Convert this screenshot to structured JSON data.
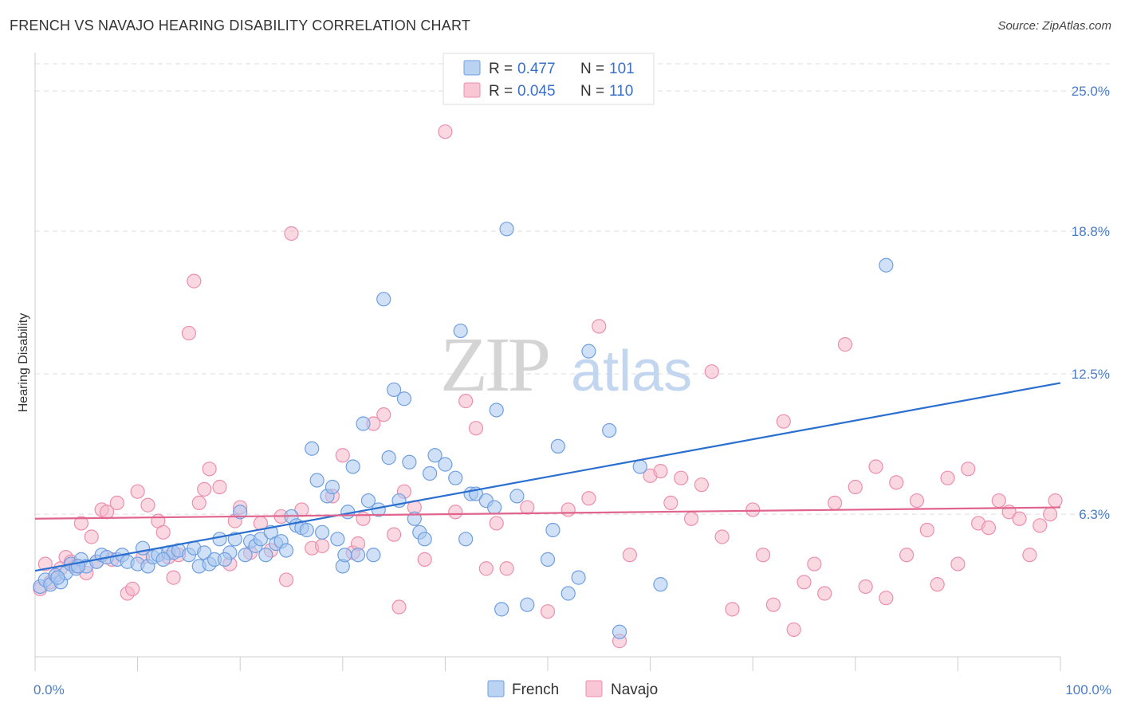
{
  "header": {
    "title": "FRENCH VS NAVAJO HEARING DISABILITY CORRELATION CHART",
    "source": "Source: ZipAtlas.com"
  },
  "watermark": {
    "zip": "ZIP",
    "atlas": "atlas"
  },
  "colors": {
    "french_fill": "#aac8f0",
    "french_stroke": "#6f9fe0",
    "french_line": "#2a6fd0",
    "navajo_fill": "#f6b8cb",
    "navajo_stroke": "#ec8fae",
    "navajo_line": "#e0648e",
    "tick_text": "#4a7dc8",
    "grid": "#dddddd"
  },
  "legend": {
    "r_label": "R =",
    "n_label": "N =",
    "rows": [
      {
        "series": "French",
        "r": "0.477",
        "n": "101"
      },
      {
        "series": "Navajo",
        "r": "0.045",
        "n": "110"
      }
    ]
  },
  "chart_data": {
    "type": "scatter",
    "title": "FRENCH VS NAVAJO HEARING DISABILITY CORRELATION CHART",
    "xlabel": "",
    "ylabel": "Hearing Disability",
    "xlim": [
      0,
      100
    ],
    "ylim": [
      0,
      26.2
    ],
    "x_tick_labels": [
      "0.0%",
      "100.0%"
    ],
    "y_ticks": [
      6.3,
      12.5,
      18.8,
      25.0
    ],
    "y_tick_labels": [
      "6.3%",
      "12.5%",
      "18.8%",
      "25.0%"
    ],
    "grid": "horizontal dashed",
    "legend_position": "top-center",
    "series": [
      {
        "name": "French",
        "trend": {
          "x": [
            0,
            100
          ],
          "y": [
            3.8,
            12.1
          ]
        },
        "points": [
          [
            0.5,
            3.1
          ],
          [
            1,
            3.4
          ],
          [
            1.5,
            3.2
          ],
          [
            2,
            3.6
          ],
          [
            2.5,
            3.3
          ],
          [
            3,
            3.7
          ],
          [
            3.5,
            4.1
          ],
          [
            4,
            3.9
          ],
          [
            4.5,
            4.3
          ],
          [
            5,
            4.0
          ],
          [
            6,
            4.2
          ],
          [
            6.5,
            4.5
          ],
          [
            7,
            4.4
          ],
          [
            8,
            4.3
          ],
          [
            8.5,
            4.5
          ],
          [
            9,
            4.2
          ],
          [
            10,
            4.1
          ],
          [
            10.5,
            4.8
          ],
          [
            11,
            4.0
          ],
          [
            11.5,
            4.4
          ],
          [
            12,
            4.5
          ],
          [
            13,
            4.6
          ],
          [
            13.5,
            4.6
          ],
          [
            14,
            4.7
          ],
          [
            15,
            4.5
          ],
          [
            15.5,
            4.8
          ],
          [
            16,
            4.0
          ],
          [
            16.5,
            4.6
          ],
          [
            17,
            4.1
          ],
          [
            17.5,
            4.3
          ],
          [
            18,
            5.2
          ],
          [
            19,
            4.6
          ],
          [
            19.5,
            5.2
          ],
          [
            20,
            6.4
          ],
          [
            20.5,
            4.5
          ],
          [
            21,
            5.1
          ],
          [
            21.5,
            4.9
          ],
          [
            22,
            5.2
          ],
          [
            22.5,
            4.5
          ],
          [
            23,
            5.5
          ],
          [
            23.5,
            5.0
          ],
          [
            24,
            5.1
          ],
          [
            24.5,
            4.7
          ],
          [
            25,
            6.2
          ],
          [
            25.5,
            5.8
          ],
          [
            26,
            5.7
          ],
          [
            27,
            9.2
          ],
          [
            27.5,
            7.8
          ],
          [
            28,
            5.5
          ],
          [
            28.5,
            7.1
          ],
          [
            29,
            7.5
          ],
          [
            29.5,
            5.2
          ],
          [
            30,
            4.0
          ],
          [
            30.5,
            6.4
          ],
          [
            31,
            8.4
          ],
          [
            31.5,
            4.5
          ],
          [
            32,
            10.3
          ],
          [
            32.5,
            6.9
          ],
          [
            33,
            4.5
          ],
          [
            33.5,
            6.5
          ],
          [
            34,
            15.8
          ],
          [
            34.5,
            8.8
          ],
          [
            35,
            11.8
          ],
          [
            35.5,
            6.9
          ],
          [
            36,
            11.4
          ],
          [
            36.5,
            8.6
          ],
          [
            37,
            6.1
          ],
          [
            37.5,
            5.5
          ],
          [
            38,
            5.2
          ],
          [
            38.5,
            8.1
          ],
          [
            39,
            8.9
          ],
          [
            40,
            8.5
          ],
          [
            41,
            7.9
          ],
          [
            41.5,
            14.4
          ],
          [
            42,
            5.2
          ],
          [
            42.5,
            7.2
          ],
          [
            43,
            7.2
          ],
          [
            44,
            6.9
          ],
          [
            45,
            10.9
          ],
          [
            45.5,
            2.1
          ],
          [
            46,
            18.9
          ],
          [
            47,
            7.1
          ],
          [
            48,
            2.3
          ],
          [
            50,
            4.3
          ],
          [
            50.5,
            5.6
          ],
          [
            51,
            9.3
          ],
          [
            52,
            2.8
          ],
          [
            53,
            3.5
          ],
          [
            54,
            13.5
          ],
          [
            56,
            10.0
          ],
          [
            57,
            1.1
          ],
          [
            59,
            8.4
          ],
          [
            61,
            3.2
          ],
          [
            83,
            17.3
          ],
          [
            4.2,
            4.0
          ],
          [
            2.2,
            3.5
          ],
          [
            12.5,
            4.3
          ],
          [
            18.5,
            4.3
          ],
          [
            26.5,
            5.6
          ],
          [
            30.2,
            4.5
          ],
          [
            44.8,
            6.6
          ]
        ]
      },
      {
        "name": "Navajo",
        "trend": {
          "x": [
            0,
            100
          ],
          "y": [
            6.1,
            6.6
          ]
        },
        "points": [
          [
            0.5,
            3.0
          ],
          [
            1,
            4.1
          ],
          [
            1.5,
            3.3
          ],
          [
            2,
            3.6
          ],
          [
            2.5,
            3.9
          ],
          [
            3,
            4.4
          ],
          [
            3.5,
            4.2
          ],
          [
            4,
            4.0
          ],
          [
            4.5,
            5.9
          ],
          [
            5,
            3.7
          ],
          [
            5.5,
            5.3
          ],
          [
            6,
            4.2
          ],
          [
            6.5,
            6.5
          ],
          [
            7,
            6.4
          ],
          [
            7.5,
            4.3
          ],
          [
            8,
            6.8
          ],
          [
            9,
            2.8
          ],
          [
            9.5,
            3.0
          ],
          [
            10,
            7.3
          ],
          [
            10.5,
            4.4
          ],
          [
            11,
            6.7
          ],
          [
            12,
            6.0
          ],
          [
            12.5,
            5.5
          ],
          [
            13,
            4.4
          ],
          [
            13.5,
            3.5
          ],
          [
            14,
            4.5
          ],
          [
            15,
            14.3
          ],
          [
            15.5,
            16.6
          ],
          [
            16,
            6.8
          ],
          [
            16.5,
            7.4
          ],
          [
            17,
            8.3
          ],
          [
            18,
            7.5
          ],
          [
            19,
            4.1
          ],
          [
            19.5,
            6.0
          ],
          [
            20,
            6.6
          ],
          [
            21,
            4.6
          ],
          [
            22,
            5.9
          ],
          [
            23,
            4.7
          ],
          [
            24,
            6.2
          ],
          [
            24.5,
            3.4
          ],
          [
            25,
            18.7
          ],
          [
            26,
            6.5
          ],
          [
            27,
            4.8
          ],
          [
            28,
            4.9
          ],
          [
            29,
            7.1
          ],
          [
            30,
            8.9
          ],
          [
            31,
            4.6
          ],
          [
            31.5,
            5.0
          ],
          [
            32,
            6.1
          ],
          [
            33,
            10.3
          ],
          [
            34,
            10.7
          ],
          [
            35,
            5.4
          ],
          [
            35.5,
            2.2
          ],
          [
            36,
            7.3
          ],
          [
            37,
            6.6
          ],
          [
            38,
            4.3
          ],
          [
            40,
            23.2
          ],
          [
            41,
            6.4
          ],
          [
            42,
            11.3
          ],
          [
            43,
            10.1
          ],
          [
            44,
            3.9
          ],
          [
            45,
            5.9
          ],
          [
            46,
            3.9
          ],
          [
            48,
            6.6
          ],
          [
            50,
            2.0
          ],
          [
            52,
            6.5
          ],
          [
            54,
            7.0
          ],
          [
            55,
            14.6
          ],
          [
            57,
            0.7
          ],
          [
            58,
            4.5
          ],
          [
            60,
            8.0
          ],
          [
            61,
            8.2
          ],
          [
            62,
            6.8
          ],
          [
            63,
            7.9
          ],
          [
            64,
            6.1
          ],
          [
            65,
            7.6
          ],
          [
            66,
            12.6
          ],
          [
            67,
            5.3
          ],
          [
            68,
            2.1
          ],
          [
            70,
            6.5
          ],
          [
            71,
            4.5
          ],
          [
            72,
            2.3
          ],
          [
            73,
            10.4
          ],
          [
            74,
            1.2
          ],
          [
            75,
            3.3
          ],
          [
            76,
            4.1
          ],
          [
            77,
            2.8
          ],
          [
            78,
            6.8
          ],
          [
            79,
            13.8
          ],
          [
            80,
            7.5
          ],
          [
            81,
            3.1
          ],
          [
            82,
            8.4
          ],
          [
            83,
            2.6
          ],
          [
            84,
            7.7
          ],
          [
            85,
            4.5
          ],
          [
            86,
            6.9
          ],
          [
            87,
            5.6
          ],
          [
            88,
            3.2
          ],
          [
            89,
            7.9
          ],
          [
            90,
            4.1
          ],
          [
            91,
            8.3
          ],
          [
            92,
            5.9
          ],
          [
            93,
            5.7
          ],
          [
            94,
            6.9
          ],
          [
            95,
            6.4
          ],
          [
            96,
            6.1
          ],
          [
            97,
            4.5
          ],
          [
            98,
            5.8
          ],
          [
            99,
            6.3
          ],
          [
            99.5,
            6.9
          ]
        ]
      }
    ]
  },
  "bottom_legend": [
    {
      "series": "French",
      "label": "French"
    },
    {
      "series": "Navajo",
      "label": "Navajo"
    }
  ]
}
